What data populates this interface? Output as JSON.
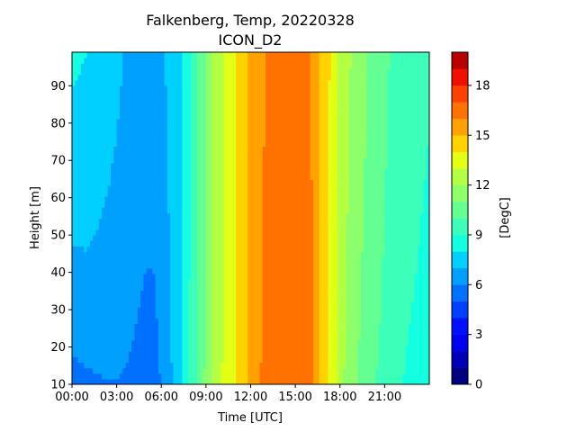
{
  "chart_data": {
    "type": "heatmap",
    "title": "Falkenberg, Temp, 20220328",
    "subtitle": "ICON_D2",
    "xlabel": "Time [UTC]",
    "ylabel": "Height [m]",
    "xlim": [
      0,
      24
    ],
    "ylim": [
      10,
      99
    ],
    "x_ticks": [
      {
        "value": 0,
        "label": "00:00"
      },
      {
        "value": 3,
        "label": "03:00"
      },
      {
        "value": 6,
        "label": "06:00"
      },
      {
        "value": 9,
        "label": "09:00"
      },
      {
        "value": 12,
        "label": "12:00"
      },
      {
        "value": 15,
        "label": "15:00"
      },
      {
        "value": 18,
        "label": "18:00"
      },
      {
        "value": 21,
        "label": "21:00"
      }
    ],
    "y_ticks": [
      10,
      20,
      30,
      40,
      50,
      60,
      70,
      80,
      90
    ],
    "colorbar": {
      "label": "[DegC]",
      "range": [
        0,
        20
      ],
      "ticks": [
        0,
        3,
        6,
        9,
        12,
        15,
        18
      ],
      "levels": [
        0,
        1,
        2,
        3,
        4,
        5,
        6,
        7,
        8,
        9,
        10,
        11,
        12,
        13,
        14,
        15,
        16,
        17,
        18,
        19,
        20
      ],
      "colors": [
        "#000080",
        "#0000b8",
        "#0000f0",
        "#0010ff",
        "#0040ff",
        "#0070ff",
        "#00a0ff",
        "#00d0ff",
        "#14ffe2",
        "#3cffba",
        "#64ff92",
        "#8cff6a",
        "#b4ff42",
        "#e2ff14",
        "#ffd200",
        "#ffa200",
        "#ff7200",
        "#ff4200",
        "#f01000",
        "#b80000"
      ]
    },
    "columns": [
      {
        "time": 0.0,
        "t_base": 5.3,
        "t_top": 8.2
      },
      {
        "time": 1.0,
        "t_base": 5.6,
        "t_top": 8.0
      },
      {
        "time": 2.0,
        "t_base": 5.8,
        "t_top": 7.6
      },
      {
        "time": 3.0,
        "t_base": 5.9,
        "t_top": 7.2
      },
      {
        "time": 4.0,
        "t_base": 5.7,
        "t_top": 6.8
      },
      {
        "time": 5.0,
        "t_base": 5.4,
        "t_top": 6.5
      },
      {
        "time": 5.6,
        "t_base": 5.6,
        "t_top": 6.4
      },
      {
        "time": 6.0,
        "t_base": 6.0,
        "t_top": 6.8
      },
      {
        "time": 6.5,
        "t_base": 6.6,
        "t_top": 7.2
      },
      {
        "time": 7.0,
        "t_base": 7.4,
        "t_top": 7.5
      },
      {
        "time": 7.5,
        "t_base": 8.4,
        "t_top": 8.0
      },
      {
        "time": 8.0,
        "t_base": 9.4,
        "t_top": 9.0
      },
      {
        "time": 8.5,
        "t_base": 10.3,
        "t_top": 10.1
      },
      {
        "time": 9.0,
        "t_base": 11.2,
        "t_top": 11.1
      },
      {
        "time": 9.5,
        "t_base": 12.1,
        "t_top": 12.0
      },
      {
        "time": 10.0,
        "t_base": 12.9,
        "t_top": 12.8
      },
      {
        "time": 10.5,
        "t_base": 13.5,
        "t_top": 13.4
      },
      {
        "time": 11.0,
        "t_base": 14.0,
        "t_top": 14.0
      },
      {
        "time": 11.5,
        "t_base": 14.5,
        "t_top": 14.5
      },
      {
        "time": 12.0,
        "t_base": 15.2,
        "t_top": 15.2
      },
      {
        "time": 12.5,
        "t_base": 15.8,
        "t_top": 15.7
      },
      {
        "time": 13.0,
        "t_base": 16.4,
        "t_top": 16.0
      },
      {
        "time": 14.0,
        "t_base": 16.8,
        "t_top": 16.3
      },
      {
        "time": 15.0,
        "t_base": 16.9,
        "t_top": 16.4
      },
      {
        "time": 15.8,
        "t_base": 16.6,
        "t_top": 16.2
      },
      {
        "time": 16.3,
        "t_base": 15.8,
        "t_top": 15.8
      },
      {
        "time": 16.8,
        "t_base": 14.6,
        "t_top": 14.8
      },
      {
        "time": 17.5,
        "t_base": 13.4,
        "t_top": 13.7
      },
      {
        "time": 18.0,
        "t_base": 12.4,
        "t_top": 12.8
      },
      {
        "time": 18.5,
        "t_base": 11.6,
        "t_top": 12.2
      },
      {
        "time": 19.5,
        "t_base": 10.6,
        "t_top": 11.3
      },
      {
        "time": 20.5,
        "t_base": 9.9,
        "t_top": 10.5
      },
      {
        "time": 21.5,
        "t_base": 9.3,
        "t_top": 9.9
      },
      {
        "time": 22.5,
        "t_base": 8.8,
        "t_top": 9.5
      },
      {
        "time": 24.0,
        "t_base": 8.4,
        "t_top": 9.1
      }
    ]
  }
}
